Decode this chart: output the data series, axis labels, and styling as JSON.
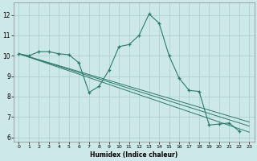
{
  "xlabel": "Humidex (Indice chaleur)",
  "background_color": "#cce8e8",
  "grid_color": "#aacccc",
  "line_color": "#2a7a6a",
  "xlim": [
    -0.5,
    23.5
  ],
  "ylim": [
    5.8,
    12.6
  ],
  "xticks": [
    0,
    1,
    2,
    3,
    4,
    5,
    6,
    7,
    8,
    9,
    10,
    11,
    12,
    13,
    14,
    15,
    16,
    17,
    18,
    19,
    20,
    21,
    22,
    23
  ],
  "yticks": [
    6,
    7,
    8,
    9,
    10,
    11,
    12
  ],
  "series_main": {
    "x": [
      0,
      1,
      2,
      3,
      4,
      5,
      6,
      7,
      8,
      9,
      10,
      11,
      12,
      13,
      14,
      15,
      16,
      17,
      18,
      19,
      20,
      21,
      22
    ],
    "y": [
      10.1,
      10.0,
      10.2,
      10.2,
      10.1,
      10.05,
      9.65,
      8.2,
      8.5,
      9.3,
      10.45,
      10.55,
      11.0,
      12.05,
      11.6,
      10.0,
      8.9,
      8.3,
      8.25,
      6.6,
      6.65,
      6.7,
      6.3
    ]
  },
  "series_straight": [
    {
      "x": [
        0,
        23
      ],
      "y": [
        10.1,
        6.25
      ]
    },
    {
      "x": [
        0,
        23
      ],
      "y": [
        10.1,
        6.55
      ]
    },
    {
      "x": [
        0,
        23
      ],
      "y": [
        10.1,
        6.75
      ]
    }
  ]
}
